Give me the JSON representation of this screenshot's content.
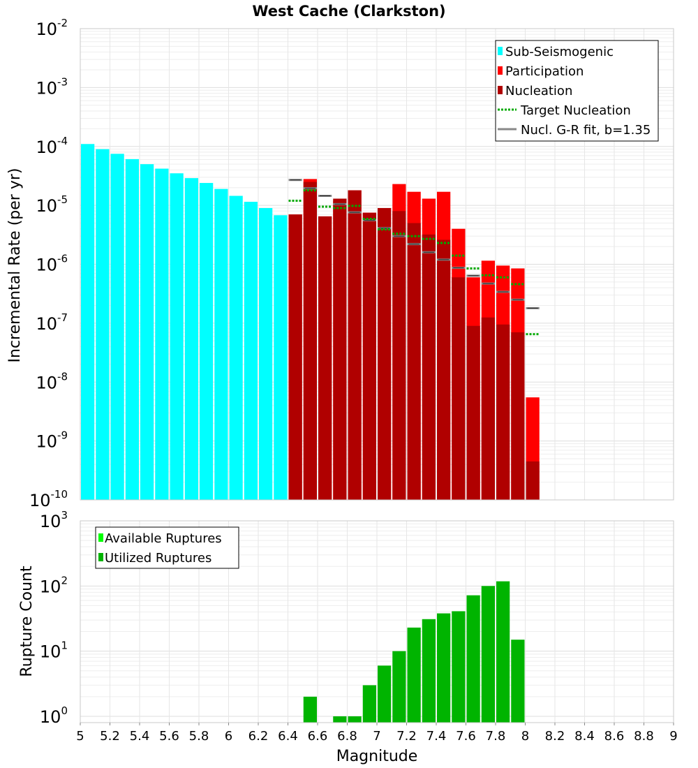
{
  "chart_data": [
    {
      "type": "bar",
      "title": "West Cache (Clarkston)",
      "ylabel": "Incremental Rate (per yr)",
      "xlabel": "",
      "yscale": "log",
      "ylim": [
        1e-10,
        0.01
      ],
      "xlim": [
        5,
        9
      ],
      "ytick_exponents": [
        "-10",
        "-9",
        "-8",
        "-7",
        "-6",
        "-5",
        "-4",
        "-3",
        "-2"
      ],
      "legend_position": "top-right",
      "series": [
        {
          "name": "Sub-Seismogenic",
          "color": "#00ffff",
          "x": [
            5.05,
            5.15,
            5.25,
            5.35,
            5.45,
            5.55,
            5.65,
            5.75,
            5.85,
            5.95,
            6.05,
            6.15,
            6.25,
            6.35
          ],
          "values": [
            0.00011,
            9e-05,
            7.5e-05,
            6.1e-05,
            5e-05,
            4.2e-05,
            3.5e-05,
            2.9e-05,
            2.4e-05,
            1.9e-05,
            1.45e-05,
            1.15e-05,
            9e-06,
            6.8e-06
          ]
        },
        {
          "name": "Participation",
          "color": "#ff0000",
          "x": [
            6.45,
            6.55,
            6.65,
            6.75,
            6.85,
            6.95,
            7.05,
            7.15,
            7.25,
            7.35,
            7.45,
            7.55,
            7.65,
            7.75,
            7.85,
            7.95,
            8.05
          ],
          "values": [
            7e-06,
            2.8e-05,
            6.5e-06,
            1.2e-05,
            1.8e-05,
            7.5e-06,
            9e-06,
            2.3e-05,
            1.7e-05,
            1.3e-05,
            1.7e-05,
            4e-06,
            6e-07,
            1.15e-06,
            9.5e-07,
            8.5e-07,
            5.5e-09
          ]
        },
        {
          "name": "Nucleation",
          "color": "#b00000",
          "x": [
            6.45,
            6.55,
            6.65,
            6.75,
            6.85,
            6.95,
            7.05,
            7.15,
            7.25,
            7.35,
            7.45,
            7.55,
            7.65,
            7.75,
            7.85,
            7.95,
            8.05
          ],
          "values": [
            7e-06,
            2.5e-05,
            6.5e-06,
            1.3e-05,
            1.8e-05,
            7.5e-06,
            9e-06,
            8e-06,
            5e-06,
            3.2e-06,
            2.6e-06,
            6e-07,
            9e-08,
            1.25e-07,
            9.5e-08,
            7e-08,
            4.5e-10
          ]
        },
        {
          "name": "Target Nucleation",
          "color": "#00aa00",
          "x": [
            6.45,
            6.55,
            6.65,
            6.75,
            6.85,
            6.95,
            7.05,
            7.15,
            7.25,
            7.35,
            7.45,
            7.55,
            7.65,
            7.75,
            7.85,
            7.95,
            8.05
          ],
          "values": [
            1.2e-05,
            1.8e-05,
            9.5e-06,
            9e-06,
            9.8e-06,
            5.9e-06,
            3.9e-06,
            3.3e-06,
            3e-06,
            2.7e-06,
            2.3e-06,
            1.4e-06,
            8.5e-07,
            6.5e-07,
            6e-07,
            4.6e-07,
            6.5e-08
          ]
        },
        {
          "name": "Nucl. G-R fit, b=1.35",
          "color": "#888888",
          "x": [
            6.45,
            6.55,
            6.65,
            6.75,
            6.85,
            6.95,
            7.05,
            7.15,
            7.25,
            7.35,
            7.45,
            7.55,
            7.65,
            7.75,
            7.85,
            7.95,
            8.05
          ],
          "values": [
            2.7e-05,
            1.95e-05,
            1.45e-05,
            1.05e-05,
            7.6e-06,
            5.6e-06,
            4.1e-06,
            3e-06,
            2.2e-06,
            1.6e-06,
            1.2e-06,
            8.7e-07,
            6.4e-07,
            4.7e-07,
            3.4e-07,
            2.5e-07,
            1.8e-07
          ]
        }
      ]
    },
    {
      "type": "bar",
      "title": "",
      "xlabel": "Magnitude",
      "ylabel": "Rupture Count",
      "yscale": "log",
      "ylim": [
        0.8,
        1000
      ],
      "xlim": [
        5,
        9
      ],
      "ytick_exponents": [
        "0",
        "1",
        "2",
        "3"
      ],
      "xticks": [
        "5",
        "5.2",
        "5.4",
        "5.6",
        "5.8",
        "6",
        "6.2",
        "6.4",
        "6.6",
        "6.8",
        "7",
        "7.2",
        "7.4",
        "7.6",
        "7.8",
        "8",
        "8.2",
        "8.4",
        "8.6",
        "8.8",
        "9"
      ],
      "legend_position": "top-left",
      "series": [
        {
          "name": "Available Ruptures",
          "color": "#00ff00",
          "x": [],
          "values": []
        },
        {
          "name": "Utilized Ruptures",
          "color": "#00b400",
          "x": [
            6.55,
            6.75,
            6.85,
            6.95,
            7.05,
            7.15,
            7.25,
            7.35,
            7.45,
            7.55,
            7.65,
            7.75,
            7.85,
            7.95
          ],
          "values": [
            2,
            1,
            1,
            3,
            6,
            10,
            23,
            31,
            38,
            41,
            72,
            100,
            118,
            15
          ]
        }
      ]
    }
  ]
}
